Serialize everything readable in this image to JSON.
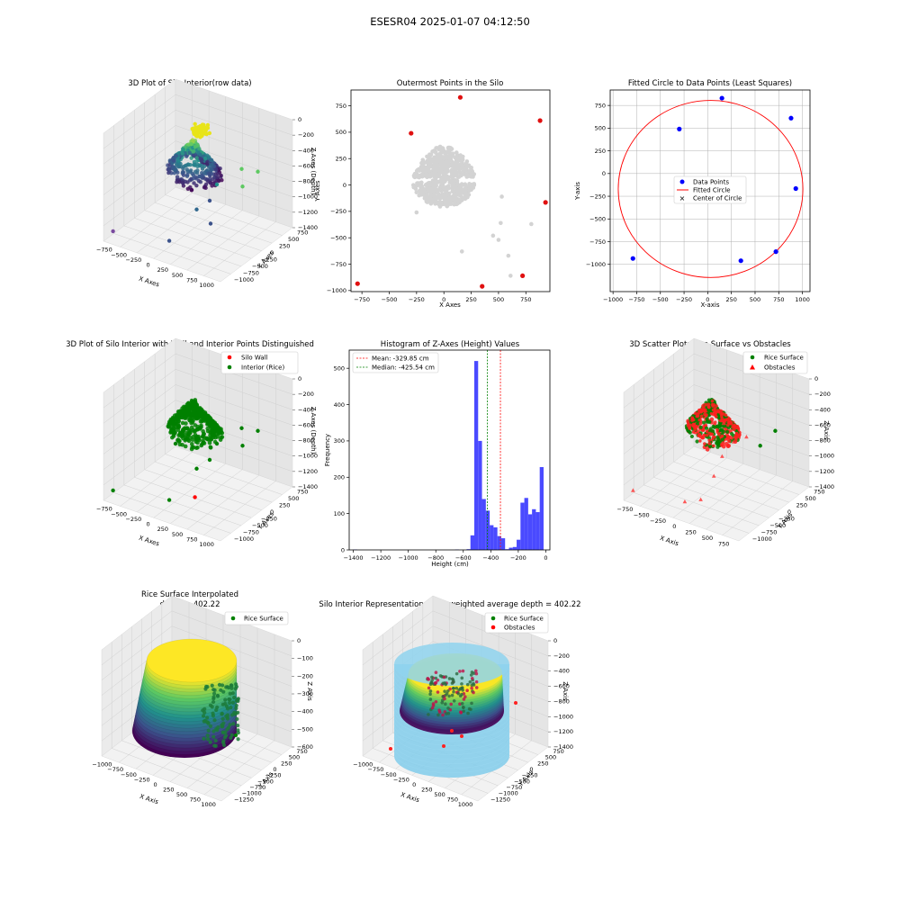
{
  "figure": {
    "suptitle": "ESESR04 2025-01-07 04:12:50"
  },
  "chart_data": [
    {
      "id": "p1",
      "type": "scatter3d",
      "title": "3D Plot of Silo Interior(row data)",
      "xlabel": "X Axes",
      "ylabel": "Y Axes",
      "zlabel": "Z Axes (Depth)",
      "xticks": [
        "−750",
        "−500",
        "−250",
        "0",
        "250",
        "500",
        "750",
        "1000"
      ],
      "yticks": [
        "750",
        "500",
        "250",
        "0",
        "−250",
        "−500",
        "−750",
        "−1000"
      ],
      "zticks": [
        "0",
        "−200",
        "−400",
        "−600",
        "−800",
        "−1000",
        "−1200",
        "−1400"
      ],
      "xlim": [
        -800,
        1000
      ],
      "ylim": [
        -1000,
        800
      ],
      "zlim": [
        -1400,
        0
      ],
      "colormap": "viridis",
      "outliers": [
        {
          "x": -780,
          "y": -930,
          "z": -1300
        },
        {
          "x": 360,
          "y": -960,
          "z": -1150
        },
        {
          "x": 720,
          "y": -860,
          "z": -1280
        },
        {
          "x": 900,
          "y": -160,
          "z": -1050
        },
        {
          "x": 880,
          "y": 610,
          "z": -820
        },
        {
          "x": 150,
          "y": 820,
          "z": -880
        },
        {
          "x": 600,
          "y": -200,
          "z": -900
        }
      ]
    },
    {
      "id": "p2",
      "type": "scatter",
      "title": "Outermost Points in the Silo",
      "xlabel": "X Axes",
      "ylabel": "Y Axes",
      "xlim": [
        -850,
        970
      ],
      "ylim": [
        -1010,
        900
      ],
      "xticks": [
        -750,
        -500,
        -250,
        0,
        250,
        500,
        750
      ],
      "yticks": [
        750,
        500,
        250,
        0,
        -250,
        -500,
        -750,
        -1000
      ],
      "tick_labels_x": [
        "−750",
        "−500",
        "−250",
        "0",
        "250",
        "500",
        "750"
      ],
      "tick_labels_y": [
        "750",
        "500",
        "250",
        "0",
        "−250",
        "−500",
        "−750",
        "−1000"
      ],
      "cloud_color": "#d3d3d3",
      "outermost_color": "#e01010",
      "outermost_points": [
        {
          "x": -300,
          "y": 490
        },
        {
          "x": 150,
          "y": 830
        },
        {
          "x": 880,
          "y": 610
        },
        {
          "x": 930,
          "y": -165
        },
        {
          "x": 720,
          "y": -860
        },
        {
          "x": 350,
          "y": -960
        },
        {
          "x": -790,
          "y": -935
        }
      ],
      "scattered_points": [
        {
          "x": 520,
          "y": -360
        },
        {
          "x": 800,
          "y": -370
        },
        {
          "x": 590,
          "y": -670
        },
        {
          "x": 610,
          "y": -860
        },
        {
          "x": 165,
          "y": -630
        },
        {
          "x": 450,
          "y": -480
        },
        {
          "x": 500,
          "y": -520
        },
        {
          "x": 530,
          "y": -110
        },
        {
          "x": -250,
          "y": -260
        }
      ]
    },
    {
      "id": "p3",
      "type": "scatter",
      "title": "Fitted Circle to Data Points (Least Squares)",
      "xlabel": "X-axis",
      "ylabel": "Y-axis",
      "xlim": [
        -1030,
        1080
      ],
      "ylim": [
        -1300,
        920
      ],
      "xticks": [
        -1000,
        -750,
        -500,
        -250,
        0,
        250,
        500,
        750,
        1000
      ],
      "yticks": [
        750,
        500,
        250,
        0,
        -250,
        -500,
        -750,
        -1000
      ],
      "tick_labels_x": [
        "−1000",
        "−750",
        "−500",
        "−250",
        "0",
        "250",
        "500",
        "750",
        "1000"
      ],
      "tick_labels_y": [
        "750",
        "500",
        "250",
        "0",
        "−250",
        "−500",
        "−750",
        "−1000"
      ],
      "grid": true,
      "legend_position": "center",
      "series": [
        {
          "name": "Data Points",
          "color": "#0000ff",
          "points": [
            {
              "x": -300,
              "y": 490
            },
            {
              "x": 150,
              "y": 830
            },
            {
              "x": 880,
              "y": 610
            },
            {
              "x": 930,
              "y": -165
            },
            {
              "x": 720,
              "y": -860
            },
            {
              "x": 350,
              "y": -960
            },
            {
              "x": -790,
              "y": -935
            }
          ]
        },
        {
          "name": "Fitted Circle",
          "color": "#ff0000",
          "center": {
            "x": 30,
            "y": -170
          },
          "radius": 975
        },
        {
          "name": "Center of Circle",
          "color": "#008000",
          "point": {
            "x": 30,
            "y": -170
          }
        }
      ]
    },
    {
      "id": "p4",
      "type": "scatter3d",
      "title": "3D Plot of Silo Interior with Wall and Interior Points Distinguished",
      "xlabel": "X Axes",
      "ylabel": "Y Axes",
      "zlabel": "Z Axes (Depth)",
      "xticks": [
        "−750",
        "−500",
        "−250",
        "0",
        "250",
        "500",
        "750",
        "1000"
      ],
      "yticks": [
        "750",
        "500",
        "250",
        "0",
        "−250",
        "−500",
        "−750",
        "−1000"
      ],
      "zticks": [
        "0",
        "−200",
        "−400",
        "−600",
        "−800",
        "−1000",
        "−1200",
        "−1400"
      ],
      "legend": [
        {
          "name": "Silo Wall",
          "color": "#ff0000"
        },
        {
          "name": "Interior (Rice)",
          "color": "#008000"
        }
      ]
    },
    {
      "id": "p5",
      "type": "histogram",
      "title": "Histogram of Z-Axes (Height) Values",
      "xlabel": "Height (cm)",
      "ylabel": "Frequency",
      "xlim": [
        -1430,
        30
      ],
      "ylim": [
        0,
        550
      ],
      "xticks": [
        -1400,
        -1200,
        -1000,
        -800,
        -600,
        -400,
        -200,
        0
      ],
      "yticks": [
        0,
        100,
        200,
        300,
        400,
        500
      ],
      "tick_labels_x": [
        "−1400",
        "−1200",
        "−1000",
        "−800",
        "−600",
        "−400",
        "−200",
        "0"
      ],
      "tick_labels_y": [
        "0",
        "100",
        "200",
        "300",
        "400",
        "500"
      ],
      "bar_color": "#4040ff",
      "bins": [
        {
          "x0": -1400,
          "x1": -1372,
          "y": 1
        },
        {
          "x0": -660,
          "x1": -632,
          "y": 1
        },
        {
          "x0": -576,
          "x1": -548,
          "y": 2
        },
        {
          "x0": -548,
          "x1": -520,
          "y": 40
        },
        {
          "x0": -520,
          "x1": -492,
          "y": 520
        },
        {
          "x0": -492,
          "x1": -464,
          "y": 300
        },
        {
          "x0": -464,
          "x1": -436,
          "y": 140
        },
        {
          "x0": -436,
          "x1": -408,
          "y": 108
        },
        {
          "x0": -408,
          "x1": -380,
          "y": 68
        },
        {
          "x0": -380,
          "x1": -352,
          "y": 62
        },
        {
          "x0": -352,
          "x1": -324,
          "y": 38
        },
        {
          "x0": -324,
          "x1": -296,
          "y": 32
        },
        {
          "x0": -296,
          "x1": -268,
          "y": 2
        },
        {
          "x0": -268,
          "x1": -240,
          "y": 6
        },
        {
          "x0": -240,
          "x1": -212,
          "y": 8
        },
        {
          "x0": -212,
          "x1": -184,
          "y": 28
        },
        {
          "x0": -184,
          "x1": -156,
          "y": 130
        },
        {
          "x0": -156,
          "x1": -128,
          "y": 143
        },
        {
          "x0": -128,
          "x1": -100,
          "y": 98
        },
        {
          "x0": -100,
          "x1": -72,
          "y": 112
        },
        {
          "x0": -72,
          "x1": -44,
          "y": 104
        },
        {
          "x0": -44,
          "x1": -16,
          "y": 228
        }
      ],
      "lines": [
        {
          "name": "Mean: -329.85 cm",
          "x": -329.85,
          "color": "#ff0000"
        },
        {
          "name": "Median: -425.54 cm",
          "x": -425.54,
          "color": "#008000"
        }
      ],
      "legend_position": "top-left"
    },
    {
      "id": "p6",
      "type": "scatter3d",
      "title": "3D Scatter Plot: Rice Surface vs Obstacles",
      "xlabel": "X Axis",
      "ylabel": "Y Axis",
      "zlabel": "Z Axis",
      "xticks": [
        "−750",
        "−500",
        "−250",
        "0",
        "250",
        "500",
        "750"
      ],
      "yticks": [
        "750",
        "500",
        "250",
        "0",
        "−250",
        "−500",
        "−750",
        "−1000"
      ],
      "zticks": [
        "0",
        "−200",
        "−400",
        "−600",
        "−800",
        "−1000",
        "−1200",
        "−1400"
      ],
      "legend": [
        {
          "name": "Rice Surface",
          "color": "#008000",
          "marker": "circle"
        },
        {
          "name": "Obstacles",
          "color": "#ff0000",
          "marker": "triangle"
        }
      ]
    },
    {
      "id": "p7",
      "type": "surface3d",
      "title": "Rice Surface Interpolated",
      "subtitle": "depth = 402.22",
      "xlabel": "X Axis",
      "ylabel": "Y Axis",
      "zlabel": "Z Axis",
      "xticks": [
        "−1000",
        "−750",
        "−500",
        "−250",
        "0",
        "250",
        "500",
        "750",
        "1000"
      ],
      "yticks": [
        "750",
        "500",
        "250",
        "0",
        "−250",
        "−500",
        "−750",
        "−1000",
        "−1250"
      ],
      "zticks": [
        "0",
        "−100",
        "−200",
        "−300",
        "−400",
        "−500",
        "−600"
      ],
      "legend": [
        {
          "name": "Rice Surface",
          "color": "#008000"
        }
      ]
    },
    {
      "id": "p8",
      "type": "surface3d",
      "title": "Silo Interior Representation using weighted average depth = 402.22",
      "xlabel": "X Axis",
      "ylabel": "Y Axis",
      "zlabel": "Z Axis",
      "xticks": [
        "−1000",
        "−750",
        "−500",
        "−250",
        "0",
        "250",
        "500",
        "750",
        "1000"
      ],
      "yticks": [
        "750",
        "500",
        "250",
        "0",
        "−250",
        "−500",
        "−750",
        "−1000",
        "−1250"
      ],
      "zticks": [
        "0",
        "−200",
        "−400",
        "−600",
        "−800",
        "−1000",
        "−1200",
        "−1400"
      ],
      "cylinder_color": "#87ceeb",
      "legend": [
        {
          "name": "Rice Surface",
          "color": "#008000"
        },
        {
          "name": "Obstacles",
          "color": "#ff0000"
        }
      ]
    }
  ]
}
